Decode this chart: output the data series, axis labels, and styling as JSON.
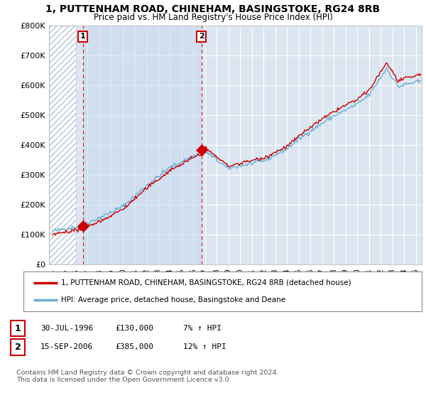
{
  "title_line1": "1, PUTTENHAM ROAD, CHINEHAM, BASINGSTOKE, RG24 8RB",
  "title_line2": "Price paid vs. HM Land Registry's House Price Index (HPI)",
  "background_color": "#ffffff",
  "plot_bg_color": "#dce6f1",
  "hatch_bg_color": "#e8eef5",
  "grid_color": "#ffffff",
  "red_line_color": "#cc0000",
  "blue_line_color": "#6bafd6",
  "blue_shade_color": "#c5d8ee",
  "sale1_date_num": 1996.58,
  "sale1_price": 130000,
  "sale2_date_num": 2006.71,
  "sale2_price": 385000,
  "xmin": 1993.7,
  "xmax": 2025.5,
  "ymin": 0,
  "ymax": 800000,
  "legend_line1": "1, PUTTENHAM ROAD, CHINEHAM, BASINGSTOKE, RG24 8RB (detached house)",
  "legend_line2": "HPI: Average price, detached house, Basingstoke and Deane",
  "table_row1": [
    "1",
    "30-JUL-1996",
    "£130,000",
    "7% ↑ HPI"
  ],
  "table_row2": [
    "2",
    "15-SEP-2006",
    "£385,000",
    "12% ↑ HPI"
  ],
  "footer": "Contains HM Land Registry data © Crown copyright and database right 2024.\nThis data is licensed under the Open Government Licence v3.0.",
  "yticks": [
    0,
    100000,
    200000,
    300000,
    400000,
    500000,
    600000,
    700000,
    800000
  ],
  "ytick_labels": [
    "£0",
    "£100K",
    "£200K",
    "£300K",
    "£400K",
    "£500K",
    "£600K",
    "£700K",
    "£800K"
  ]
}
